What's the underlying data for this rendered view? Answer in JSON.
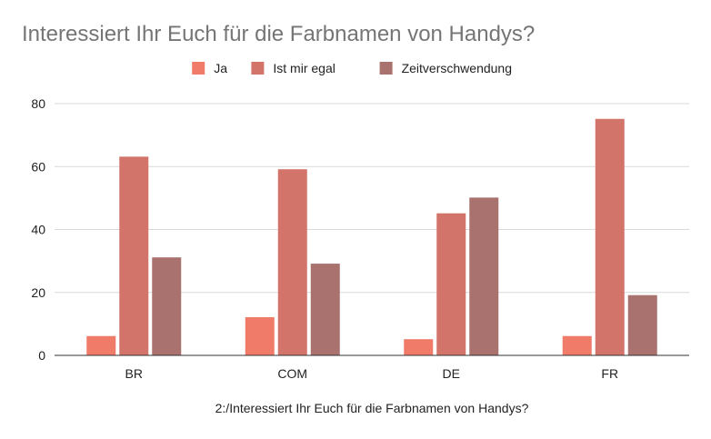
{
  "chart_data": {
    "type": "bar",
    "title": "Interessiert Ihr Euch für die Farbnamen von Handys?",
    "xlabel": "2:/Interessiert Ihr Euch für die Farbnamen von Handys?",
    "ylabel": "",
    "categories": [
      "BR",
      "COM",
      "DE",
      "FR"
    ],
    "series": [
      {
        "name": "Ja",
        "color": "#f07b68",
        "values": [
          6,
          12,
          5,
          6
        ]
      },
      {
        "name": "Ist mir egal",
        "color": "#d2746a",
        "values": [
          63,
          59,
          45,
          75
        ]
      },
      {
        "name": "Zeitverschwendung",
        "color": "#a9726f",
        "values": [
          31,
          29,
          50,
          19
        ]
      }
    ],
    "ylim": [
      0,
      80
    ],
    "yticks": [
      0,
      20,
      40,
      60,
      80
    ],
    "grid": true,
    "legend_position": "top-center"
  }
}
